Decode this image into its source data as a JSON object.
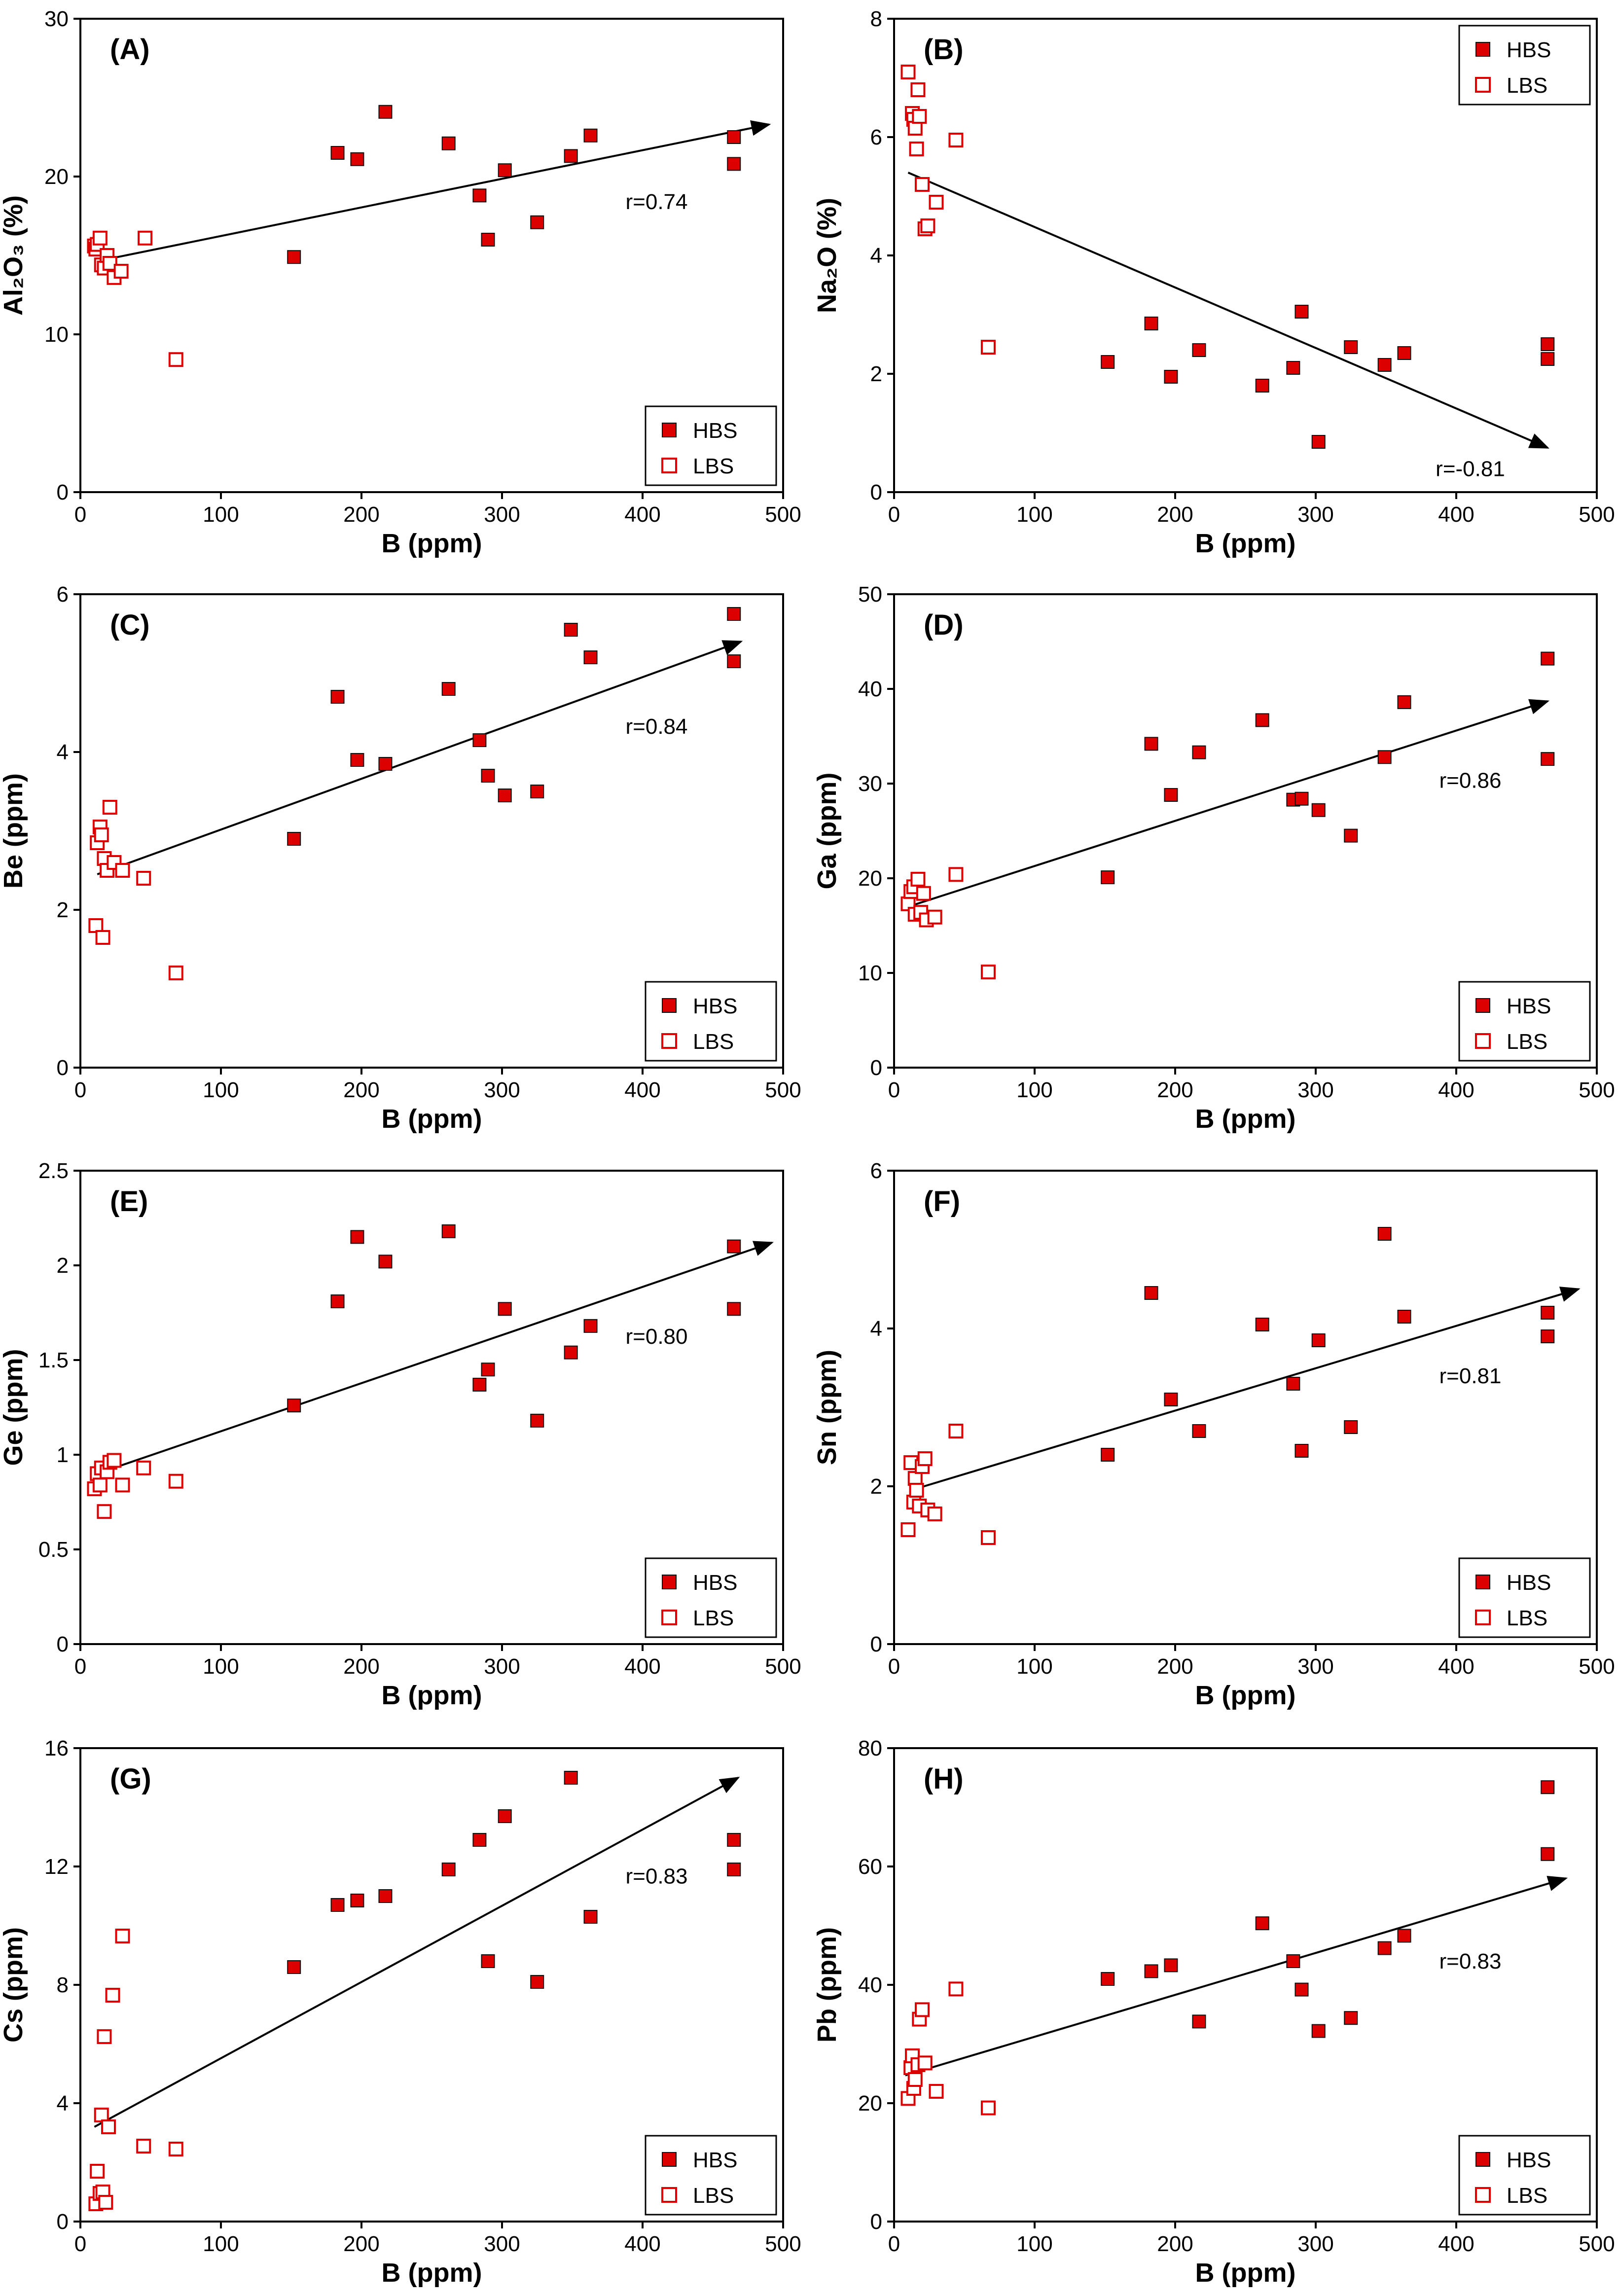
{
  "figure": {
    "series_names": [
      "HBS",
      "LBS"
    ],
    "colors": {
      "marker": "#dd0000",
      "frame": "#000000",
      "trend": "#000000"
    }
  },
  "chart_data": [
    {
      "type": "scatter",
      "panel": "(A)",
      "xlabel": "B (ppm)",
      "ylabel": "Al₂O₃ (%)",
      "xlim": [
        0,
        500
      ],
      "ylim": [
        0,
        30
      ],
      "xticks": [
        0,
        100,
        200,
        300,
        400,
        500
      ],
      "yticks": [
        0,
        10,
        20,
        30
      ],
      "r": "r=0.74",
      "legend_position": "bottom-right",
      "trend": {
        "x": [
          10,
          490
        ],
        "y": [
          14.6,
          23.3
        ]
      },
      "series": [
        {
          "name": "HBS",
          "x": [
            152,
            183,
            197,
            217,
            262,
            284,
            290,
            302,
            325,
            349,
            363,
            465,
            465
          ],
          "y": [
            14.9,
            21.5,
            21.1,
            24.1,
            22.1,
            18.8,
            16.0,
            20.4,
            17.1,
            21.3,
            22.6,
            22.5,
            20.8
          ]
        },
        {
          "name": "LBS",
          "x": [
            10,
            11,
            12,
            14,
            15,
            17,
            19,
            21,
            24,
            29,
            46,
            68
          ],
          "y": [
            15.6,
            15.4,
            15.7,
            16.1,
            14.4,
            14.2,
            15.0,
            14.5,
            13.6,
            14.0,
            16.1,
            8.4
          ]
        }
      ]
    },
    {
      "type": "scatter",
      "panel": "(B)",
      "xlabel": "B (ppm)",
      "ylabel": "Na₂O (%)",
      "xlim": [
        0,
        500
      ],
      "ylim": [
        0,
        8
      ],
      "xticks": [
        0,
        100,
        200,
        300,
        400,
        500
      ],
      "yticks": [
        0,
        2,
        4,
        6,
        8
      ],
      "r": "r=-0.81",
      "legend_position": "top-right",
      "trend": {
        "x": [
          10,
          465
        ],
        "y": [
          5.4,
          0.75
        ]
      },
      "series": [
        {
          "name": "HBS",
          "x": [
            152,
            183,
            197,
            217,
            262,
            284,
            290,
            302,
            325,
            349,
            363,
            465,
            465
          ],
          "y": [
            2.2,
            2.85,
            1.95,
            2.4,
            1.8,
            2.1,
            3.05,
            0.85,
            2.45,
            2.15,
            2.35,
            2.5,
            2.25
          ]
        },
        {
          "name": "LBS",
          "x": [
            10,
            13,
            14,
            15,
            16,
            17,
            18,
            20,
            22,
            24,
            30,
            44,
            67
          ],
          "y": [
            7.1,
            6.4,
            6.3,
            6.15,
            5.8,
            6.8,
            6.35,
            5.2,
            4.45,
            4.5,
            4.9,
            5.95,
            2.45
          ]
        }
      ]
    },
    {
      "type": "scatter",
      "panel": "(C)",
      "xlabel": "B (ppm)",
      "ylabel": "Be (ppm)",
      "xlim": [
        0,
        500
      ],
      "ylim": [
        0,
        6
      ],
      "xticks": [
        0,
        100,
        200,
        300,
        400,
        500
      ],
      "yticks": [
        0,
        2,
        4,
        6
      ],
      "r": "r=0.84",
      "legend_position": "bottom-right",
      "trend": {
        "x": [
          12,
          470
        ],
        "y": [
          2.45,
          5.4
        ]
      },
      "series": [
        {
          "name": "HBS",
          "x": [
            152,
            183,
            197,
            217,
            262,
            284,
            290,
            302,
            325,
            349,
            363,
            465,
            465
          ],
          "y": [
            2.9,
            4.7,
            3.9,
            3.85,
            4.8,
            4.15,
            3.7,
            3.45,
            3.5,
            5.55,
            5.2,
            5.75,
            5.15
          ]
        },
        {
          "name": "LBS",
          "x": [
            11,
            12,
            14,
            15,
            16,
            17,
            19,
            21,
            24,
            30,
            45,
            68
          ],
          "y": [
            1.8,
            2.85,
            3.05,
            2.95,
            1.65,
            2.65,
            2.5,
            3.3,
            2.6,
            2.5,
            2.4,
            1.2
          ]
        }
      ]
    },
    {
      "type": "scatter",
      "panel": "(D)",
      "xlabel": "B (ppm)",
      "ylabel": "Ga (ppm)",
      "xlim": [
        0,
        500
      ],
      "ylim": [
        0,
        50
      ],
      "xticks": [
        0,
        100,
        200,
        300,
        400,
        500
      ],
      "yticks": [
        0,
        10,
        20,
        30,
        40,
        50
      ],
      "r": "r=0.86",
      "legend_position": "bottom-right",
      "trend": {
        "x": [
          10,
          465
        ],
        "y": [
          17.0,
          38.7
        ]
      },
      "series": [
        {
          "name": "HBS",
          "x": [
            152,
            183,
            197,
            217,
            262,
            284,
            290,
            302,
            325,
            349,
            363,
            465,
            465
          ],
          "y": [
            20.1,
            34.2,
            28.8,
            33.3,
            36.7,
            28.3,
            28.4,
            27.2,
            24.5,
            32.8,
            38.6,
            43.2,
            32.6
          ]
        },
        {
          "name": "LBS",
          "x": [
            10,
            12,
            14,
            15,
            17,
            19,
            21,
            23,
            29,
            44,
            67
          ],
          "y": [
            17.3,
            18.6,
            19.1,
            16.2,
            19.9,
            16.4,
            18.4,
            15.6,
            15.9,
            20.4,
            10.1
          ]
        }
      ]
    },
    {
      "type": "scatter",
      "panel": "(E)",
      "xlabel": "B (ppm)",
      "ylabel": "Ge (ppm)",
      "xlim": [
        0,
        500
      ],
      "ylim": [
        0,
        2.5
      ],
      "xticks": [
        0,
        100,
        200,
        300,
        400,
        500
      ],
      "yticks": [
        0,
        0.5,
        1,
        1.5,
        2,
        2.5
      ],
      "r": "r=0.80",
      "legend_position": "bottom-right",
      "trend": {
        "x": [
          8,
          492
        ],
        "y": [
          0.89,
          2.12
        ]
      },
      "series": [
        {
          "name": "HBS",
          "x": [
            152,
            183,
            197,
            217,
            262,
            284,
            290,
            302,
            325,
            349,
            363,
            465,
            465
          ],
          "y": [
            1.26,
            1.81,
            2.15,
            2.02,
            2.18,
            1.37,
            1.45,
            1.77,
            1.18,
            1.54,
            1.68,
            2.1,
            1.77
          ]
        },
        {
          "name": "LBS",
          "x": [
            10,
            12,
            14,
            15,
            17,
            19,
            21,
            24,
            30,
            45,
            68
          ],
          "y": [
            0.82,
            0.9,
            0.84,
            0.93,
            0.7,
            0.91,
            0.96,
            0.97,
            0.84,
            0.93,
            0.86
          ]
        }
      ]
    },
    {
      "type": "scatter",
      "panel": "(F)",
      "xlabel": "B (ppm)",
      "ylabel": "Sn (ppm)",
      "xlim": [
        0,
        500
      ],
      "ylim": [
        0,
        6
      ],
      "xticks": [
        0,
        100,
        200,
        300,
        400,
        500
      ],
      "yticks": [
        0,
        2,
        4,
        6
      ],
      "r": "r=0.81",
      "legend_position": "bottom-right",
      "trend": {
        "x": [
          12,
          487
        ],
        "y": [
          1.95,
          4.5
        ]
      },
      "series": [
        {
          "name": "HBS",
          "x": [
            152,
            183,
            197,
            217,
            262,
            284,
            290,
            302,
            325,
            349,
            363,
            465,
            465
          ],
          "y": [
            2.4,
            4.45,
            3.1,
            2.7,
            4.05,
            3.3,
            2.45,
            3.85,
            2.75,
            5.2,
            4.15,
            4.2,
            3.9
          ]
        },
        {
          "name": "LBS",
          "x": [
            10,
            12,
            14,
            15,
            16,
            18,
            20,
            22,
            24,
            29,
            44,
            67
          ],
          "y": [
            1.45,
            2.3,
            1.8,
            2.1,
            1.95,
            1.75,
            2.25,
            2.35,
            1.7,
            1.65,
            2.7,
            1.35
          ]
        }
      ]
    },
    {
      "type": "scatter",
      "panel": "(G)",
      "xlabel": "B (ppm)",
      "ylabel": "Cs (ppm)",
      "xlim": [
        0,
        500
      ],
      "ylim": [
        0,
        16
      ],
      "xticks": [
        0,
        100,
        200,
        300,
        400,
        500
      ],
      "yticks": [
        0,
        4,
        8,
        12,
        16
      ],
      "r": "r=0.83",
      "legend_position": "bottom-right",
      "trend": {
        "x": [
          10,
          468
        ],
        "y": [
          3.2,
          15.0
        ]
      },
      "series": [
        {
          "name": "HBS",
          "x": [
            152,
            183,
            197,
            217,
            262,
            284,
            290,
            302,
            325,
            349,
            363,
            465,
            465
          ],
          "y": [
            8.6,
            10.7,
            10.85,
            11.0,
            11.9,
            12.9,
            8.8,
            13.7,
            8.1,
            15.0,
            10.3,
            12.9,
            11.9
          ]
        },
        {
          "name": "LBS",
          "x": [
            11,
            12,
            14,
            15,
            16,
            17,
            18,
            20,
            23,
            30,
            45,
            68
          ],
          "y": [
            0.6,
            1.7,
            0.95,
            3.6,
            1.0,
            6.25,
            0.65,
            3.2,
            7.65,
            9.65,
            2.55,
            2.45
          ]
        }
      ]
    },
    {
      "type": "scatter",
      "panel": "(H)",
      "xlabel": "B (ppm)",
      "ylabel": "Pb (ppm)",
      "xlim": [
        0,
        500
      ],
      "ylim": [
        0,
        80
      ],
      "xticks": [
        0,
        100,
        200,
        300,
        400,
        500
      ],
      "yticks": [
        0,
        20,
        40,
        60,
        80
      ],
      "r": "r=0.83",
      "legend_position": "bottom-right",
      "trend": {
        "x": [
          8,
          478
        ],
        "y": [
          24.7,
          58.0
        ]
      },
      "series": [
        {
          "name": "HBS",
          "x": [
            152,
            183,
            197,
            217,
            262,
            284,
            290,
            302,
            325,
            349,
            363,
            465,
            465
          ],
          "y": [
            41.0,
            42.3,
            43.3,
            33.8,
            50.4,
            44.0,
            39.2,
            32.2,
            34.4,
            46.2,
            48.3,
            73.4,
            62.1
          ]
        },
        {
          "name": "LBS",
          "x": [
            10,
            12,
            13,
            14,
            15,
            17,
            18,
            20,
            22,
            30,
            44,
            67
          ],
          "y": [
            20.8,
            26.0,
            28.0,
            22.5,
            24.0,
            26.5,
            34.2,
            35.8,
            26.8,
            22.0,
            39.3,
            19.2
          ]
        }
      ]
    }
  ]
}
